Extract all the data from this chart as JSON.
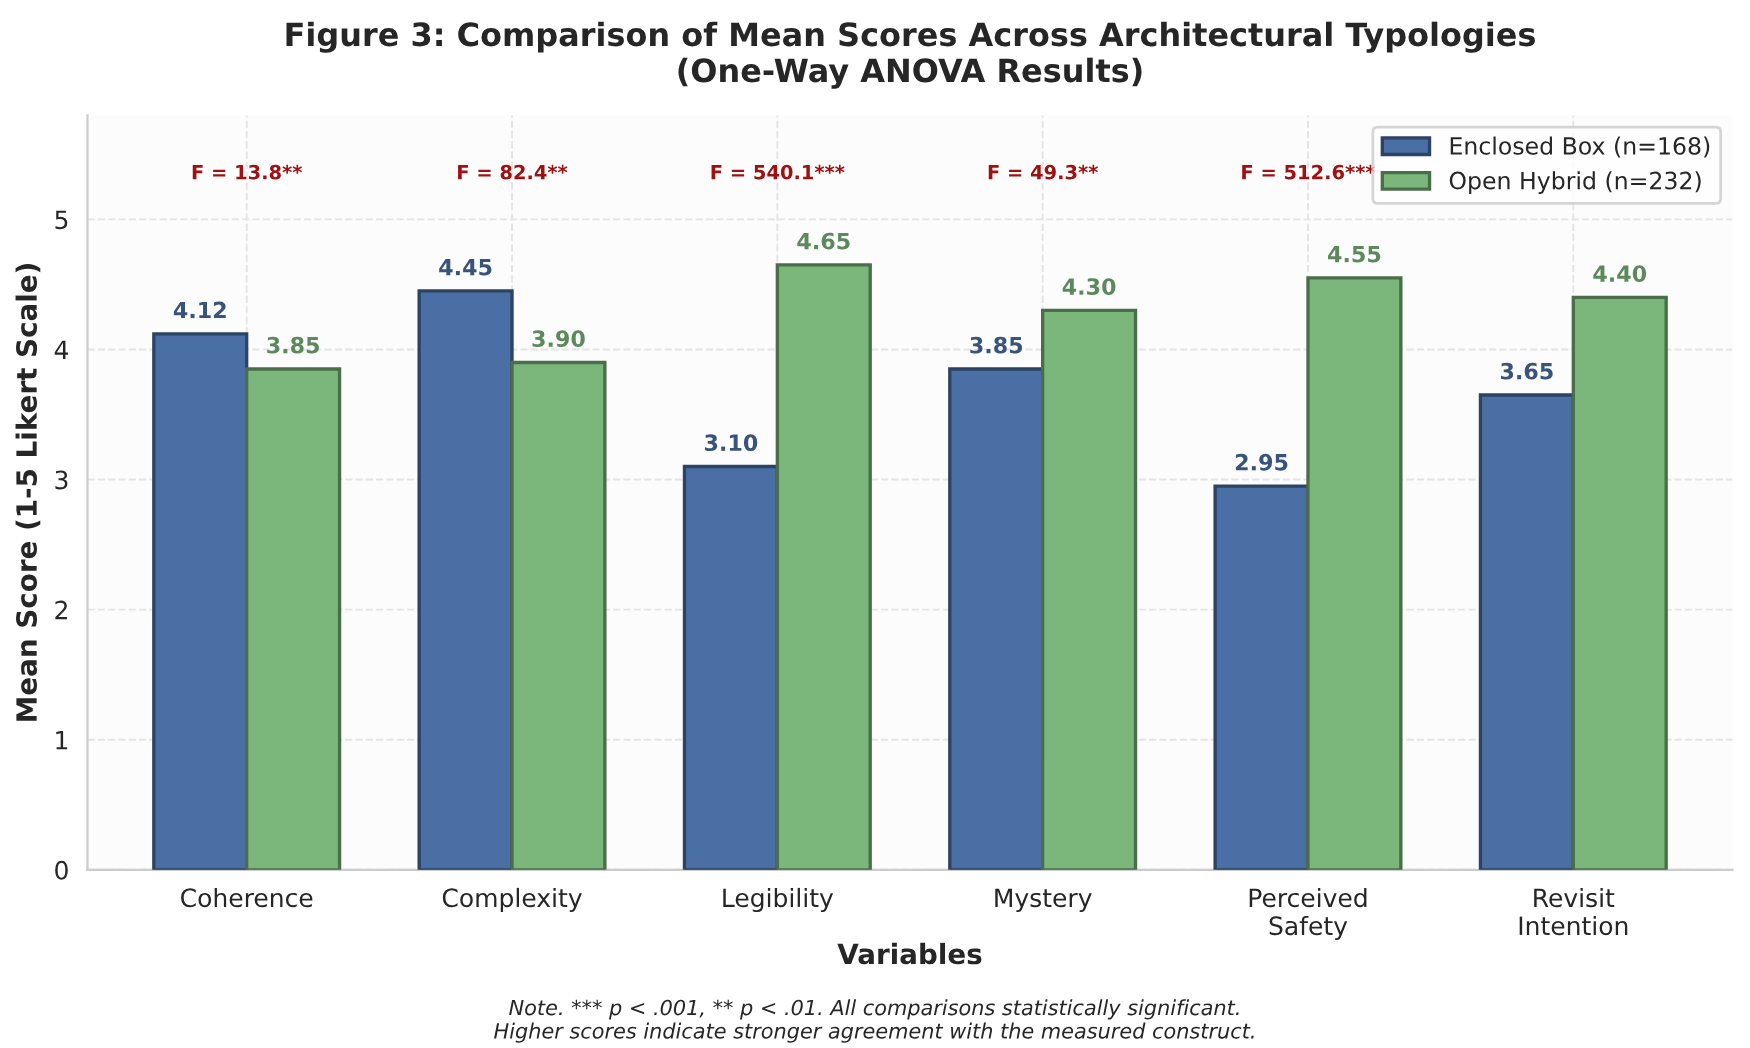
{
  "chart_data": {
    "type": "bar",
    "title": "Figure 3: Comparison of Mean Scores Across Architectural Typologies\n(One-Way ANOVA Results)",
    "xlabel": "Variables",
    "ylabel": "Mean Score (1-5 Likert Scale)",
    "categories": [
      "Coherence",
      "Complexity",
      "Legibility",
      "Mystery",
      "Perceived\nSafety",
      "Revisit\nIntention"
    ],
    "series": [
      {
        "name": "Enclosed Box (n=168)",
        "color": "#4a6fa5",
        "values": [
          4.12,
          4.45,
          3.1,
          3.85,
          2.95,
          3.65
        ],
        "value_labels": [
          "4.12",
          "4.45",
          "3.10",
          "3.85",
          "2.95",
          "3.65"
        ]
      },
      {
        "name": "Open Hybrid (n=232)",
        "color": "#7bb77a",
        "values": [
          3.85,
          3.9,
          4.65,
          4.3,
          4.55,
          4.4
        ],
        "value_labels": [
          "3.85",
          "3.90",
          "4.65",
          "4.30",
          "4.55",
          "4.40"
        ]
      }
    ],
    "annotations": [
      "F = 13.8**",
      "F = 82.4**",
      "F = 540.1***",
      "F = 49.3**",
      "F = 512.6***",
      "Note. *** p < .001, ** p < .01. All comparisons statistically significant.\nHigher scores indicate stronger agreement with the measured construct."
    ],
    "ylim": [
      0,
      5.8
    ],
    "yticks": [
      0,
      1,
      2,
      3,
      4,
      5
    ],
    "grid": true,
    "legend": "top right"
  }
}
